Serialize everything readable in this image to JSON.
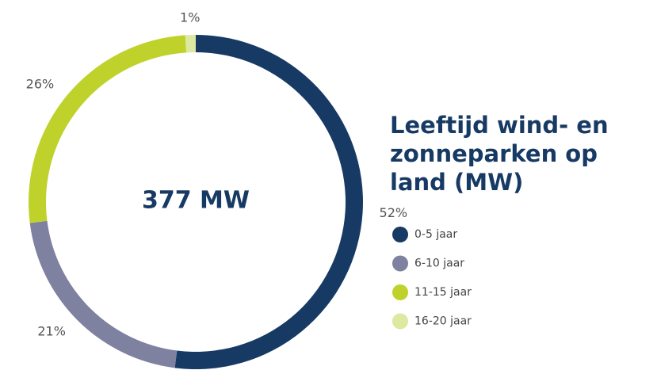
{
  "chart_data": {
    "type": "donut",
    "title": "Leeftijd wind- en zonneparken op land (MW)",
    "center_label": "377 MW",
    "categories": [
      "0-5 jaar",
      "6-10 jaar",
      "11-15 jaar",
      "16-20 jaar"
    ],
    "values": [
      52,
      21,
      26,
      1
    ],
    "value_labels": [
      "52%",
      "21%",
      "26%",
      "1%"
    ],
    "colors": [
      "#173a64",
      "#7e819f",
      "#bfd22b",
      "#dde8a0"
    ],
    "legend": "right"
  }
}
